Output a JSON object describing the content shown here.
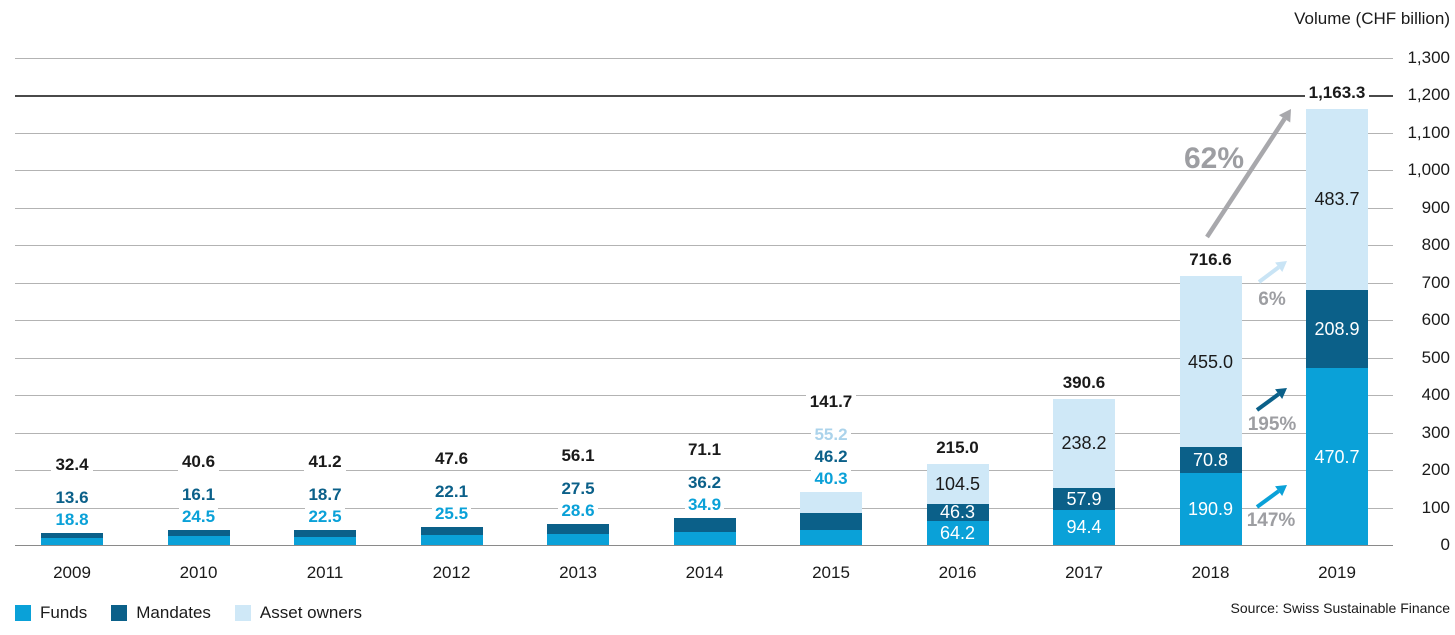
{
  "chart_data": {
    "type": "bar",
    "stacked": true,
    "title": "Volume (CHF billion)",
    "source": "Source: Swiss Sustainable Finance",
    "categories": [
      "2009",
      "2010",
      "2011",
      "2012",
      "2013",
      "2014",
      "2015",
      "2016",
      "2017",
      "2018",
      "2019"
    ],
    "series": [
      {
        "name": "Funds",
        "color": "#0aa1d8",
        "values": [
          18.8,
          24.5,
          22.5,
          25.5,
          28.6,
          34.9,
          40.3,
          64.2,
          94.4,
          190.9,
          470.7
        ]
      },
      {
        "name": "Mandates",
        "color": "#0b6089",
        "values": [
          13.6,
          16.1,
          18.7,
          22.1,
          27.5,
          36.2,
          46.2,
          46.3,
          57.9,
          70.8,
          208.9
        ]
      },
      {
        "name": "Asset owners",
        "color": "#cfe8f7",
        "label_color": "#abd3eb",
        "values": [
          0,
          0,
          0,
          0,
          0,
          0,
          55.2,
          104.5,
          238.2,
          455.0,
          483.7
        ]
      }
    ],
    "totals": [
      "32.4",
      "40.6",
      "41.2",
      "47.6",
      "56.1",
      "71.1",
      "141.7",
      "215.0",
      "390.6",
      "716.6",
      "1,163.3"
    ],
    "y_axis": {
      "min": 0,
      "max": 1300,
      "step": 100,
      "tick_labels": [
        "0",
        "100",
        "200",
        "300",
        "400",
        "500",
        "600",
        "700",
        "800",
        "900",
        "1,000",
        "1,100",
        "1,200",
        "1,300"
      ],
      "emphasized_line": "1,200"
    },
    "growth_annotations": [
      {
        "label": "62%",
        "applies_to": "Total"
      },
      {
        "label": "6%",
        "applies_to": "Asset owners"
      },
      {
        "label": "195%",
        "applies_to": "Mandates"
      },
      {
        "label": "147%",
        "applies_to": "Funds"
      }
    ],
    "legend": [
      "Funds",
      "Mandates",
      "Asset owners"
    ]
  }
}
